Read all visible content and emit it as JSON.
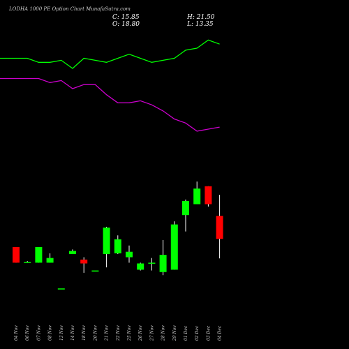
{
  "header": {
    "title": "LODHA 1000  PE Option  Chart MunafaSutra.com",
    "close_label": "C: 15.85",
    "high_label": "H: 21.50",
    "open_label": "O: 18.80",
    "low_label": "L: 13.35"
  },
  "colors": {
    "background": "#000000",
    "up": "#00ff00",
    "down": "#ff0000",
    "line_upper": "#00ff00",
    "line_lower": "#cc00cc",
    "text": "#ffffff"
  },
  "chart_data": {
    "type": "candlestick",
    "categories": [
      "04 Nov",
      "06 Nov",
      "07 Nov",
      "08 Nov",
      "13 Nov",
      "14 Nov",
      "18 Nov",
      "20 Nov",
      "21 Nov",
      "22 Nov",
      "25 Nov",
      "26 Nov",
      "27 Nov",
      "28 Nov",
      "29 Nov",
      "01 Dec",
      "02 Dec",
      "03 Dec",
      "04 Dec"
    ],
    "candles": [
      {
        "open": 14.8,
        "high": 14.8,
        "low": 12.8,
        "close": 12.8
      },
      {
        "open": 12.9,
        "high": 13.0,
        "low": 12.8,
        "close": 12.9
      },
      {
        "open": 12.8,
        "high": 14.8,
        "low": 12.8,
        "close": 14.8
      },
      {
        "open": 12.8,
        "high": 14.0,
        "low": 12.8,
        "close": 13.4
      },
      {
        "open": 9.5,
        "high": 9.5,
        "low": 9.5,
        "close": 9.5
      },
      {
        "open": 13.9,
        "high": 14.5,
        "low": 13.9,
        "close": 14.3
      },
      {
        "open": 13.2,
        "high": 13.5,
        "low": 11.5,
        "close": 12.7
      },
      {
        "open": 11.8,
        "high": 11.8,
        "low": 11.8,
        "close": 11.8
      },
      {
        "open": 13.9,
        "high": 17.4,
        "low": 12.2,
        "close": 17.3
      },
      {
        "open": 14.0,
        "high": 16.3,
        "low": 13.9,
        "close": 15.8
      },
      {
        "open": 13.5,
        "high": 15.0,
        "low": 12.8,
        "close": 14.2
      },
      {
        "open": 11.9,
        "high": 12.8,
        "low": 11.8,
        "close": 12.7
      },
      {
        "open": 12.7,
        "high": 13.4,
        "low": 11.8,
        "close": 12.8
      },
      {
        "open": 11.6,
        "high": 15.7,
        "low": 11.2,
        "close": 13.8
      },
      {
        "open": 11.9,
        "high": 18.1,
        "low": 11.9,
        "close": 17.7
      },
      {
        "open": 18.9,
        "high": 20.9,
        "low": 16.8,
        "close": 20.7
      },
      {
        "open": 20.3,
        "high": 23.2,
        "low": 20.3,
        "close": 22.3
      },
      {
        "open": 22.6,
        "high": 22.6,
        "low": 20.0,
        "close": 20.3
      },
      {
        "open": 18.8,
        "high": 21.5,
        "low": 13.35,
        "close": 15.85
      }
    ],
    "ylim": [
      8,
      25
    ],
    "lines": [
      {
        "color": "#00ff00",
        "values": [
          0.85,
          0.85,
          0.83,
          0.83,
          0.84,
          0.8,
          0.85,
          0.84,
          0.83,
          0.85,
          0.87,
          0.85,
          0.83,
          0.84,
          0.85,
          0.89,
          0.9,
          0.94,
          0.92
        ]
      },
      {
        "color": "#cc00cc",
        "values": [
          0.75,
          0.75,
          0.75,
          0.73,
          0.74,
          0.7,
          0.72,
          0.72,
          0.67,
          0.63,
          0.63,
          0.64,
          0.62,
          0.59,
          0.55,
          0.53,
          0.49,
          0.5,
          0.51
        ]
      }
    ],
    "lines_ylim": [
      0,
      1
    ]
  }
}
